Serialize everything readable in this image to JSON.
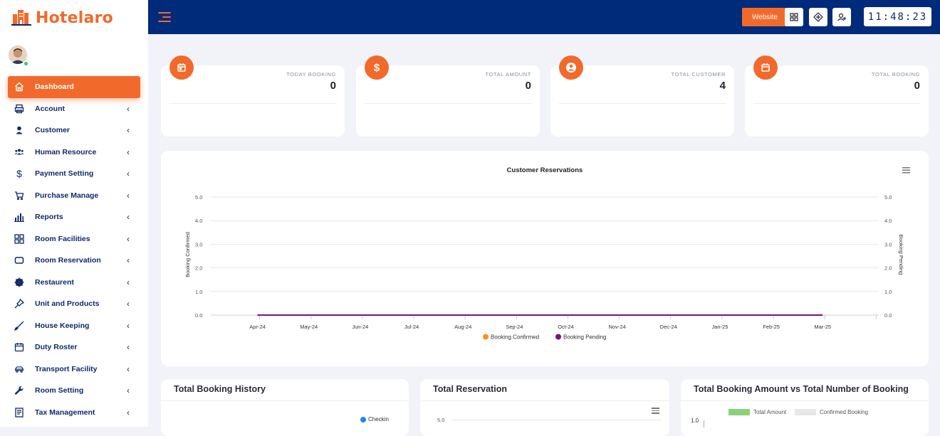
{
  "app": {
    "name": "Hotelaro"
  },
  "sidebar": {
    "items": [
      {
        "label": "Dashboard",
        "icon": "home-icon",
        "active": true
      },
      {
        "label": "Account",
        "icon": "printer-icon"
      },
      {
        "label": "Customer",
        "icon": "user-icon"
      },
      {
        "label": "Human Resource",
        "icon": "users-icon"
      },
      {
        "label": "Payment Setting",
        "icon": "dollar-icon"
      },
      {
        "label": "Purchase Manage",
        "icon": "cart-icon"
      },
      {
        "label": "Reports",
        "icon": "bar-chart-icon"
      },
      {
        "label": "Room Facilities",
        "icon": "grid-icon"
      },
      {
        "label": "Room Reservation",
        "icon": "rectangle-icon"
      },
      {
        "label": "Restaurent",
        "icon": "gear-icon"
      },
      {
        "label": "Unit and Products",
        "icon": "pin-icon"
      },
      {
        "label": "House Keeping",
        "icon": "brush-icon"
      },
      {
        "label": "Duty Roster",
        "icon": "calendar-icon"
      },
      {
        "label": "Transport Facility",
        "icon": "car-icon"
      },
      {
        "label": "Room Setting",
        "icon": "wrench-icon"
      },
      {
        "label": "Tax Management",
        "icon": "receipt-icon"
      }
    ]
  },
  "topbar": {
    "website_label": "Website",
    "clock": "11:48:23"
  },
  "cards": [
    {
      "label": "TODAY BOOKING",
      "value": "0",
      "icon": "calendar-icon"
    },
    {
      "label": "TOTAL AMOUNT",
      "value": "0",
      "icon": "dollar-icon"
    },
    {
      "label": "TOTAL CUSTOMER",
      "value": "4",
      "icon": "user-circle-icon"
    },
    {
      "label": "TOTAL BOOKING",
      "value": "0",
      "icon": "calendar-icon"
    }
  ],
  "chart_data": {
    "type": "line",
    "title": "Customer Reservations",
    "ylabel_left": "Booking Confirmed",
    "ylabel_right": "Booking Pending",
    "ylim": [
      0,
      5
    ],
    "yticks": [
      "0.0",
      "1.0",
      "2.0",
      "3.0",
      "4.0",
      "5.0"
    ],
    "categories": [
      "Apr-24",
      "May-24",
      "Jun-24",
      "Jul-24",
      "Aug-24",
      "Sep-24",
      "Oct-24",
      "Nov-24",
      "Dec-24",
      "Jan-25",
      "Feb-25",
      "Mar-25"
    ],
    "series": [
      {
        "name": "Booking Confirmed",
        "color": "#f7931e",
        "values": [
          0,
          0,
          0,
          0,
          0,
          0,
          0,
          0,
          0,
          0,
          0,
          0
        ]
      },
      {
        "name": "Booking Pending",
        "color": "#7b1180",
        "values": [
          0,
          0,
          0,
          0,
          0,
          0,
          0,
          0,
          0,
          0,
          0,
          0
        ]
      }
    ],
    "grid": true,
    "legend": "bottom"
  },
  "panels": [
    {
      "title": "Total Booking History",
      "legend": "Checkin"
    },
    {
      "title": "Total Reservation",
      "ytick": "5.0"
    },
    {
      "title": "Total Booking Amount vs Total Number of Booking",
      "legend": [
        "Total Amount",
        "Confirmed Booking"
      ],
      "ytick": "1.0"
    }
  ]
}
